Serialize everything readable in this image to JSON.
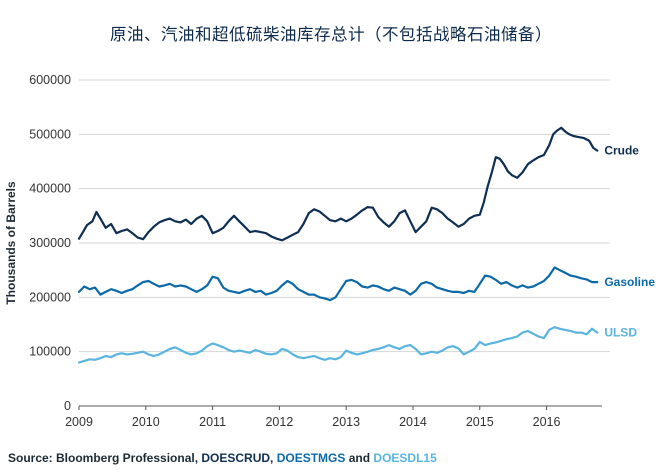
{
  "chart_data": {
    "type": "line",
    "title": "原油、汽油和超低硫柴油库存总计（不包括战略石油储备）",
    "xlabel": "",
    "ylabel": "Thousands of Barrels",
    "ylim": [
      0,
      600000
    ],
    "yticks": [
      0,
      100000,
      200000,
      300000,
      400000,
      500000,
      600000
    ],
    "ytick_labels": [
      "0",
      "100000",
      "200000",
      "300000",
      "400000",
      "500000",
      "600000"
    ],
    "xlim": [
      2009.0,
      2016.83
    ],
    "xticks": [
      2009,
      2010,
      2011,
      2012,
      2013,
      2014,
      2015,
      2016
    ],
    "xtick_labels": [
      "2009",
      "2010",
      "2011",
      "2012",
      "2013",
      "2014",
      "2015",
      "2016"
    ],
    "grid": true,
    "legend": "inline labels at right end of each line",
    "series": [
      {
        "name": "Crude",
        "color": "#0f2f52",
        "x": [
          2009.0,
          2009.06,
          2009.12,
          2009.2,
          2009.26,
          2009.32,
          2009.4,
          2009.48,
          2009.56,
          2009.64,
          2009.72,
          2009.8,
          2009.88,
          2009.96,
          2010.04,
          2010.12,
          2010.2,
          2010.28,
          2010.36,
          2010.44,
          2010.52,
          2010.6,
          2010.68,
          2010.76,
          2010.84,
          2010.92,
          2011.0,
          2011.08,
          2011.16,
          2011.24,
          2011.32,
          2011.4,
          2011.48,
          2011.56,
          2011.64,
          2011.72,
          2011.8,
          2011.88,
          2011.96,
          2012.04,
          2012.12,
          2012.2,
          2012.28,
          2012.36,
          2012.44,
          2012.52,
          2012.6,
          2012.68,
          2012.76,
          2012.84,
          2012.92,
          2013.0,
          2013.08,
          2013.16,
          2013.24,
          2013.32,
          2013.4,
          2013.48,
          2013.56,
          2013.64,
          2013.72,
          2013.8,
          2013.88,
          2013.96,
          2014.04,
          2014.12,
          2014.2,
          2014.28,
          2014.36,
          2014.44,
          2014.52,
          2014.6,
          2014.68,
          2014.76,
          2014.84,
          2014.92,
          2015.0,
          2015.06,
          2015.12,
          2015.18,
          2015.24,
          2015.3,
          2015.36,
          2015.42,
          2015.48,
          2015.56,
          2015.64,
          2015.72,
          2015.8,
          2015.88,
          2015.96,
          2016.04,
          2016.1,
          2016.16,
          2016.22,
          2016.28,
          2016.34,
          2016.4,
          2016.48,
          2016.56,
          2016.64,
          2016.7,
          2016.76
        ],
        "values": [
          308000,
          320000,
          333000,
          340000,
          357000,
          345000,
          328000,
          335000,
          318000,
          322000,
          325000,
          318000,
          310000,
          307000,
          320000,
          330000,
          338000,
          342000,
          345000,
          340000,
          338000,
          343000,
          335000,
          345000,
          350000,
          340000,
          318000,
          322000,
          328000,
          340000,
          350000,
          340000,
          330000,
          320000,
          322000,
          320000,
          318000,
          312000,
          308000,
          305000,
          310000,
          315000,
          320000,
          335000,
          355000,
          362000,
          358000,
          350000,
          342000,
          340000,
          345000,
          340000,
          345000,
          352000,
          360000,
          366000,
          365000,
          348000,
          338000,
          330000,
          340000,
          355000,
          360000,
          340000,
          320000,
          330000,
          340000,
          365000,
          362000,
          355000,
          345000,
          338000,
          330000,
          335000,
          345000,
          350000,
          352000,
          375000,
          405000,
          430000,
          458000,
          455000,
          445000,
          432000,
          425000,
          420000,
          430000,
          445000,
          452000,
          458000,
          462000,
          480000,
          500000,
          507000,
          512000,
          505000,
          500000,
          497000,
          495000,
          493000,
          488000,
          475000,
          470000
        ]
      },
      {
        "name": "Gasoline",
        "color": "#0c69a8",
        "x": [
          2009.0,
          2009.08,
          2009.16,
          2009.24,
          2009.32,
          2009.4,
          2009.48,
          2009.56,
          2009.64,
          2009.72,
          2009.8,
          2009.88,
          2009.96,
          2010.04,
          2010.12,
          2010.2,
          2010.28,
          2010.36,
          2010.44,
          2010.52,
          2010.6,
          2010.68,
          2010.76,
          2010.84,
          2010.92,
          2011.0,
          2011.08,
          2011.16,
          2011.24,
          2011.32,
          2011.4,
          2011.48,
          2011.56,
          2011.64,
          2011.72,
          2011.8,
          2011.88,
          2011.96,
          2012.04,
          2012.12,
          2012.2,
          2012.28,
          2012.36,
          2012.44,
          2012.52,
          2012.6,
          2012.68,
          2012.76,
          2012.84,
          2012.92,
          2013.0,
          2013.08,
          2013.16,
          2013.24,
          2013.32,
          2013.4,
          2013.48,
          2013.56,
          2013.64,
          2013.72,
          2013.8,
          2013.88,
          2013.96,
          2014.04,
          2014.12,
          2014.2,
          2014.28,
          2014.36,
          2014.44,
          2014.52,
          2014.6,
          2014.68,
          2014.76,
          2014.84,
          2014.92,
          2015.0,
          2015.08,
          2015.16,
          2015.24,
          2015.32,
          2015.4,
          2015.48,
          2015.56,
          2015.64,
          2015.72,
          2015.8,
          2015.88,
          2015.96,
          2016.04,
          2016.12,
          2016.2,
          2016.28,
          2016.36,
          2016.44,
          2016.52,
          2016.6,
          2016.68,
          2016.76
        ],
        "values": [
          210000,
          220000,
          215000,
          218000,
          205000,
          210000,
          215000,
          212000,
          208000,
          212000,
          215000,
          222000,
          228000,
          230000,
          225000,
          220000,
          222000,
          225000,
          220000,
          222000,
          220000,
          215000,
          210000,
          215000,
          222000,
          238000,
          235000,
          218000,
          212000,
          210000,
          208000,
          212000,
          215000,
          210000,
          212000,
          205000,
          208000,
          212000,
          222000,
          230000,
          225000,
          215000,
          210000,
          205000,
          205000,
          200000,
          198000,
          195000,
          200000,
          215000,
          230000,
          232000,
          228000,
          220000,
          218000,
          222000,
          220000,
          215000,
          212000,
          218000,
          215000,
          212000,
          205000,
          212000,
          225000,
          228000,
          225000,
          218000,
          215000,
          212000,
          210000,
          210000,
          208000,
          212000,
          210000,
          225000,
          240000,
          238000,
          232000,
          225000,
          228000,
          222000,
          218000,
          222000,
          218000,
          220000,
          225000,
          230000,
          240000,
          255000,
          250000,
          245000,
          240000,
          238000,
          235000,
          233000,
          228000,
          228000
        ]
      },
      {
        "name": "ULSD",
        "color": "#5ab4e0",
        "x": [
          2009.0,
          2009.08,
          2009.16,
          2009.24,
          2009.32,
          2009.4,
          2009.48,
          2009.56,
          2009.64,
          2009.72,
          2009.8,
          2009.88,
          2009.96,
          2010.04,
          2010.12,
          2010.2,
          2010.28,
          2010.36,
          2010.44,
          2010.52,
          2010.6,
          2010.68,
          2010.76,
          2010.84,
          2010.92,
          2011.0,
          2011.08,
          2011.16,
          2011.24,
          2011.32,
          2011.4,
          2011.48,
          2011.56,
          2011.64,
          2011.72,
          2011.8,
          2011.88,
          2011.96,
          2012.04,
          2012.12,
          2012.2,
          2012.28,
          2012.36,
          2012.44,
          2012.52,
          2012.6,
          2012.68,
          2012.76,
          2012.84,
          2012.92,
          2013.0,
          2013.08,
          2013.16,
          2013.24,
          2013.32,
          2013.4,
          2013.48,
          2013.56,
          2013.64,
          2013.72,
          2013.8,
          2013.88,
          2013.96,
          2014.04,
          2014.12,
          2014.2,
          2014.28,
          2014.36,
          2014.44,
          2014.52,
          2014.6,
          2014.68,
          2014.76,
          2014.84,
          2014.92,
          2015.0,
          2015.08,
          2015.16,
          2015.24,
          2015.32,
          2015.4,
          2015.48,
          2015.56,
          2015.64,
          2015.72,
          2015.8,
          2015.88,
          2015.96,
          2016.04,
          2016.12,
          2016.2,
          2016.28,
          2016.36,
          2016.44,
          2016.52,
          2016.6,
          2016.68,
          2016.76
        ],
        "values": [
          80000,
          83000,
          86000,
          85000,
          88000,
          92000,
          90000,
          95000,
          97000,
          95000,
          96000,
          98000,
          100000,
          95000,
          92000,
          95000,
          100000,
          105000,
          108000,
          103000,
          98000,
          95000,
          97000,
          102000,
          110000,
          115000,
          112000,
          108000,
          103000,
          100000,
          102000,
          100000,
          98000,
          103000,
          100000,
          96000,
          95000,
          97000,
          105000,
          102000,
          95000,
          90000,
          88000,
          90000,
          92000,
          88000,
          85000,
          88000,
          86000,
          90000,
          102000,
          98000,
          95000,
          97000,
          100000,
          103000,
          105000,
          108000,
          112000,
          108000,
          105000,
          110000,
          112000,
          105000,
          95000,
          97000,
          100000,
          98000,
          102000,
          108000,
          110000,
          106000,
          95000,
          100000,
          105000,
          118000,
          112000,
          115000,
          117000,
          120000,
          123000,
          125000,
          128000,
          135000,
          138000,
          133000,
          128000,
          125000,
          140000,
          145000,
          142000,
          140000,
          138000,
          135000,
          135000,
          132000,
          142000,
          135000
        ]
      }
    ]
  },
  "source": {
    "prefix": "Source: Bloomberg Professional, ",
    "code_crude": "DOESCRUD",
    "separator": ", ",
    "code_gasoline": "DOESTMGS",
    "and_word": " and ",
    "code_ulsd": "DOESDL15"
  },
  "colors": {
    "title": "#0c2a4c",
    "grid": "#d4d4d4",
    "axis": "#555555",
    "crude": "#0f2f52",
    "gasoline": "#0c69a8",
    "ulsd": "#5ab4e0"
  }
}
